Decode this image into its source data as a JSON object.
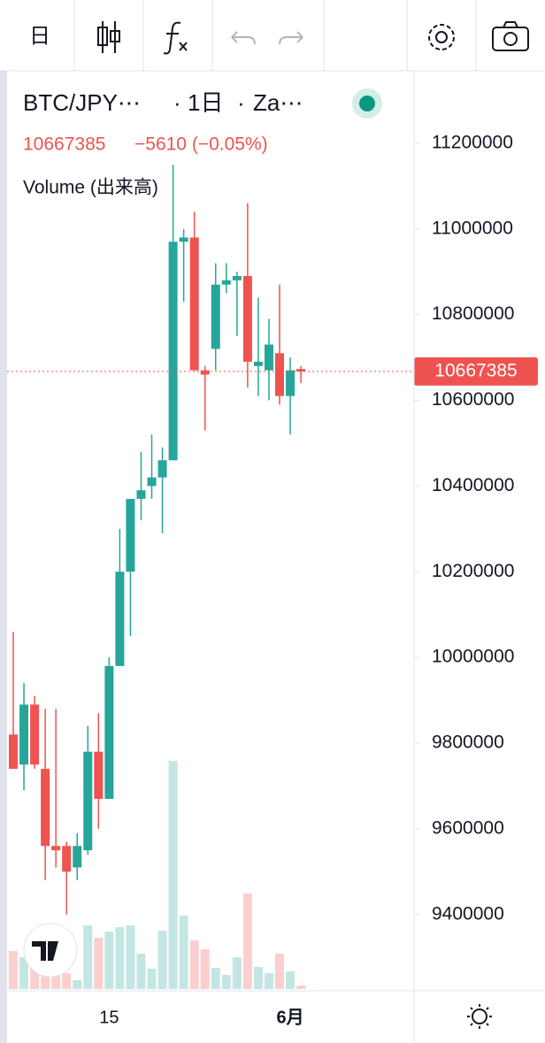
{
  "toolbar": {
    "interval": "日"
  },
  "chart_data": {
    "type": "candlestick",
    "symbol": "BTC/JPY⋯",
    "interval": "1日",
    "exchange": "Za⋯",
    "last_price": 10667385,
    "change_label": "−5610 (−0.05%)",
    "volume_label": "Volume (出来高)",
    "categories": [
      null,
      null,
      null,
      null,
      null,
      null,
      null,
      null,
      null,
      "15",
      null,
      null,
      null,
      null,
      null,
      null,
      null,
      null,
      null,
      null,
      null,
      null,
      null,
      null,
      null,
      null,
      "6月",
      null
    ],
    "open": [
      9820000,
      9750000,
      9890000,
      9740000,
      9560000,
      9560000,
      9510000,
      9550000,
      9780000,
      9670000,
      9980000,
      10200000,
      10370000,
      10400000,
      10420000,
      10460000,
      10970000,
      10980000,
      10670000,
      10720000,
      10870000,
      10880000,
      10890000,
      10680000,
      10670000,
      10710000,
      10610000,
      10672995
    ],
    "high": [
      10060000,
      9940000,
      9910000,
      9880000,
      9880000,
      9570000,
      9590000,
      9840000,
      9870000,
      10000000,
      10300000,
      10370000,
      10480000,
      10520000,
      10490000,
      11150000,
      11000000,
      11040000,
      10680000,
      10920000,
      10920000,
      10900000,
      11060000,
      10840000,
      10790000,
      10870000,
      10700000,
      10680000
    ],
    "low": [
      9740000,
      9690000,
      9740000,
      9480000,
      9510000,
      9400000,
      9480000,
      9540000,
      9600000,
      9670000,
      9980000,
      10050000,
      10320000,
      10370000,
      10290000,
      10460000,
      10830000,
      10670000,
      10530000,
      10670000,
      10850000,
      10750000,
      10630000,
      10610000,
      10600000,
      10590000,
      10520000,
      10640000
    ],
    "close": [
      9740000,
      9890000,
      9750000,
      9560000,
      9550000,
      9500000,
      9560000,
      9780000,
      9670000,
      9980000,
      10200000,
      10370000,
      10390000,
      10420000,
      10460000,
      10970000,
      10980000,
      10670000,
      10660000,
      10870000,
      10880000,
      10890000,
      10690000,
      10690000,
      10730000,
      10610000,
      10670000,
      10667385
    ],
    "volume": [
      43,
      36,
      32,
      20,
      18,
      18,
      10,
      72,
      58,
      65,
      70,
      72,
      40,
      23,
      66,
      258,
      83,
      55,
      45,
      24,
      16,
      36,
      108,
      25,
      18,
      40,
      20,
      4
    ],
    "up_color": "#26a69a",
    "down_color": "#ef5350",
    "ylim": [
      9222000,
      11369000
    ],
    "yticks": [
      9400000,
      9600000,
      9800000,
      10000000,
      10200000,
      10400000,
      10600000,
      10800000,
      11000000,
      11200000
    ]
  }
}
